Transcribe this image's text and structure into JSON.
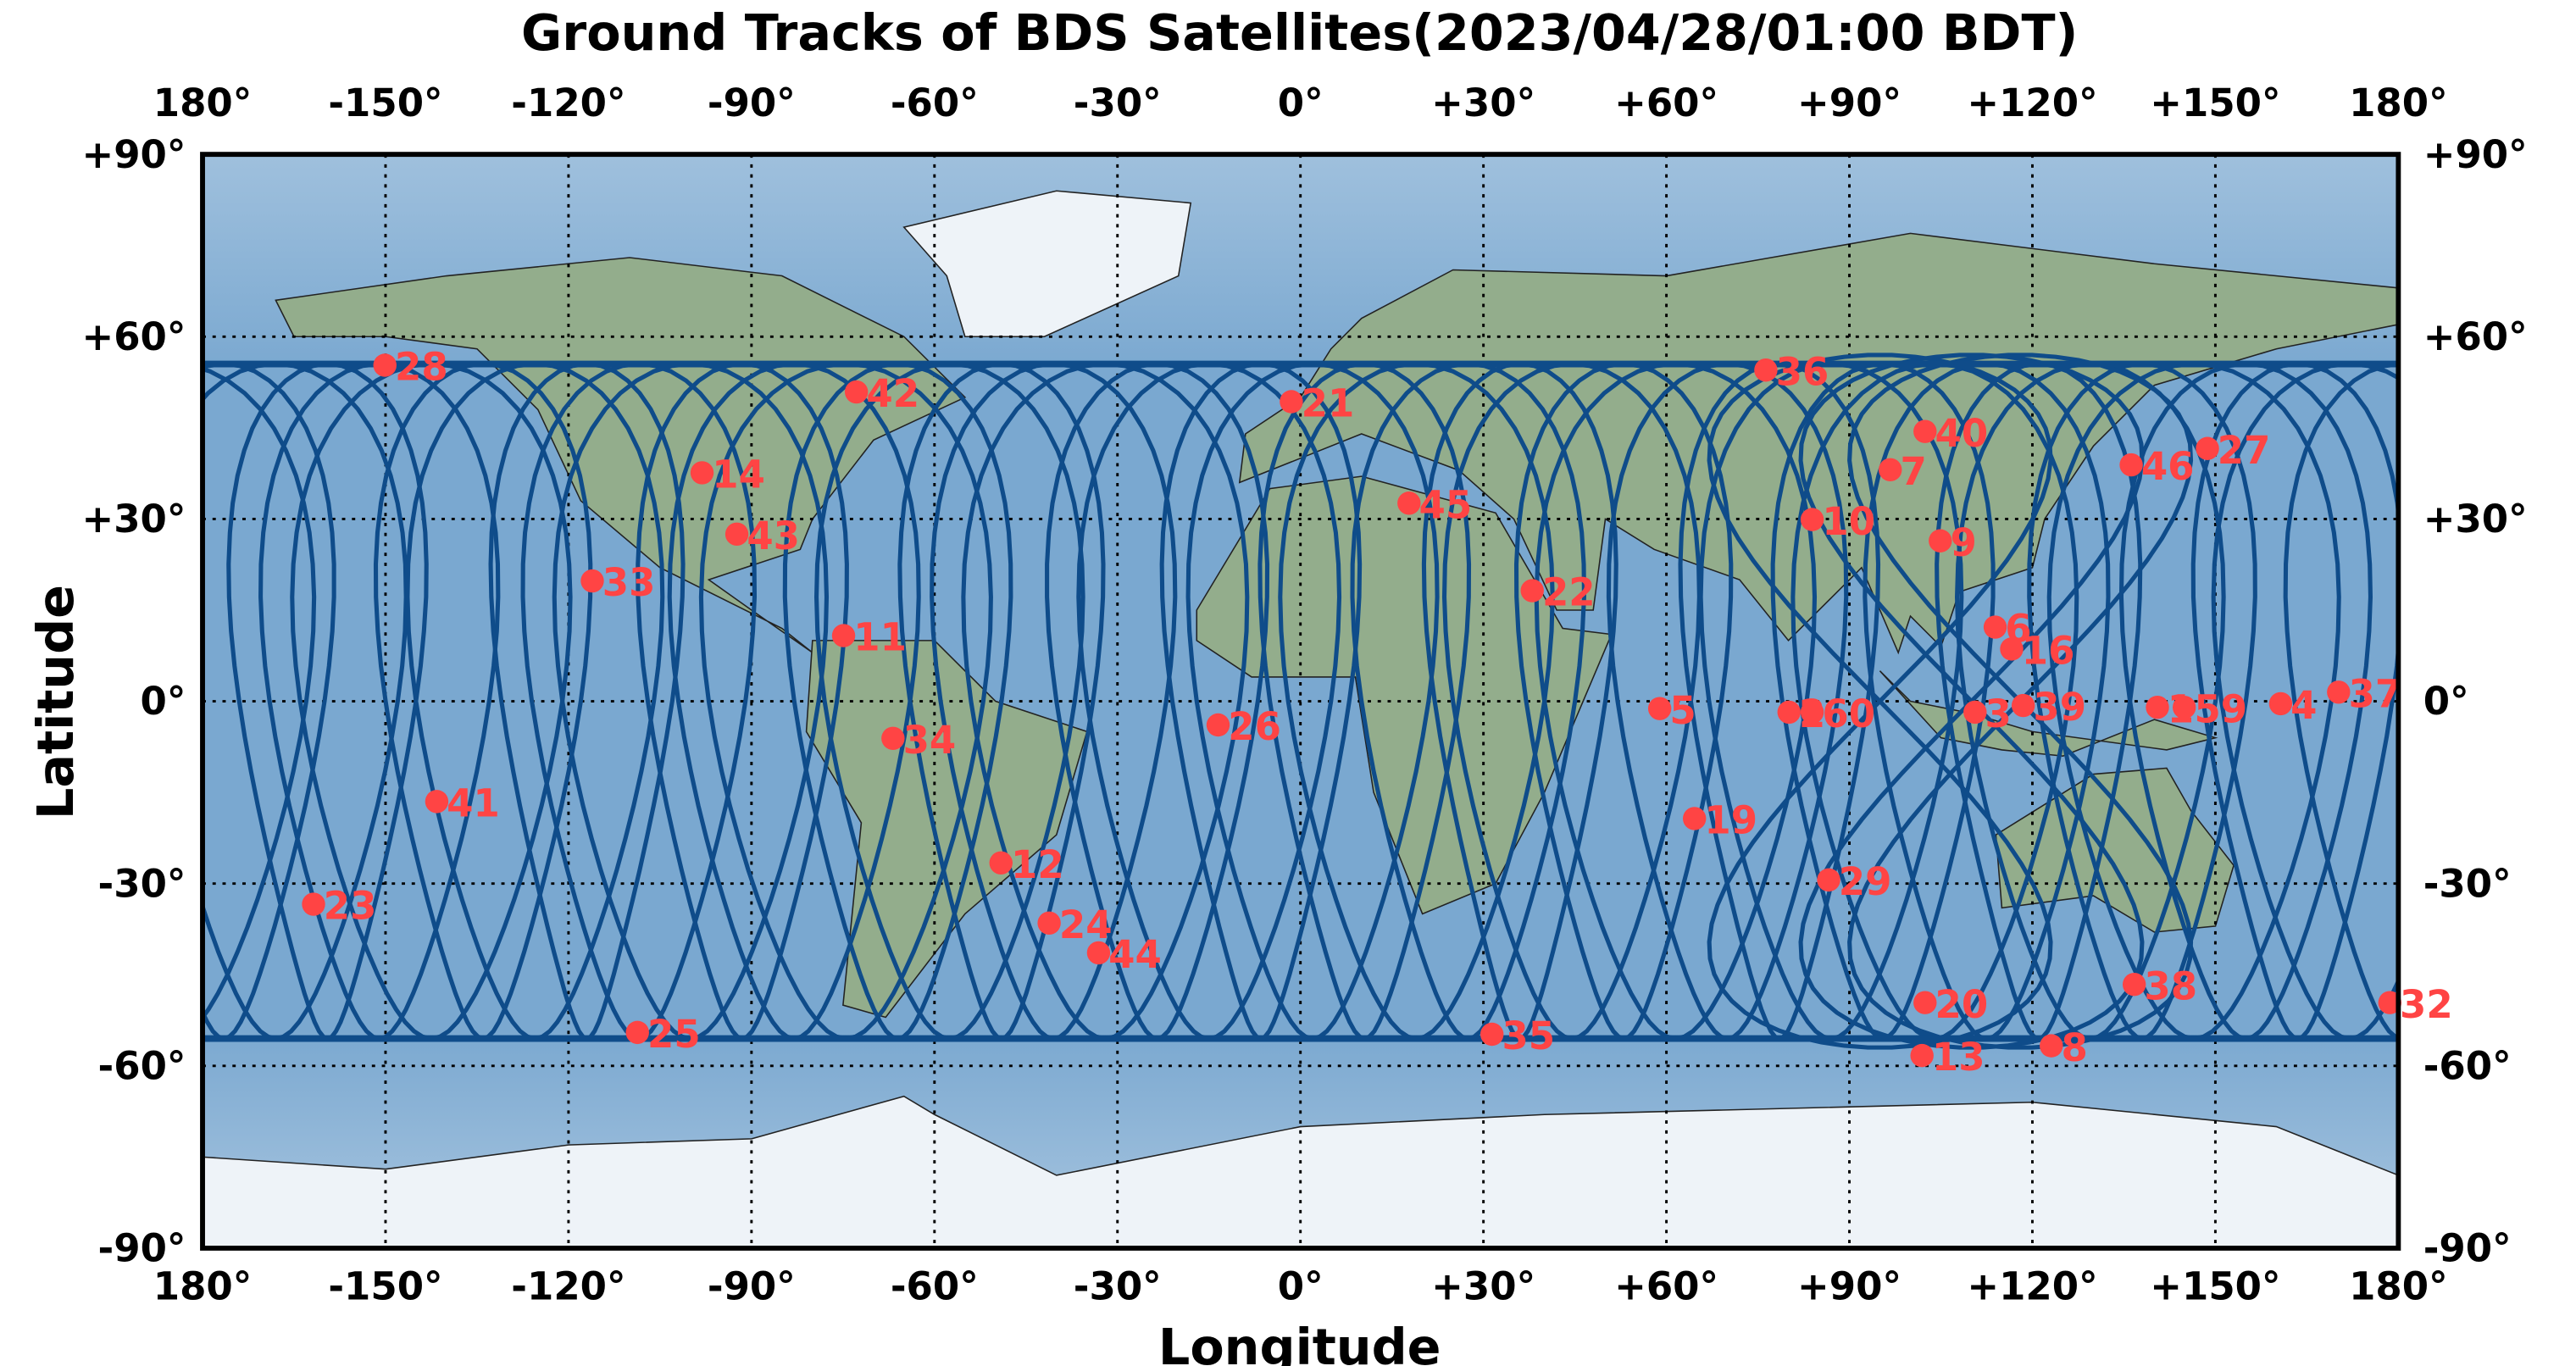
{
  "chart_data": {
    "type": "scatter",
    "title": "Ground Tracks of BDS Satellites(2023/04/28/01:00 BDT)",
    "xlabel": "Longitude",
    "ylabel": "Latitude",
    "xlim": [
      -180,
      180
    ],
    "ylim": [
      -90,
      90
    ],
    "grid": true,
    "x_ticks": [
      "180°",
      "-150°",
      "-120°",
      "-90°",
      "-60°",
      "-30°",
      "0°",
      "+30°",
      "+60°",
      "+90°",
      "+120°",
      "+150°",
      "180°"
    ],
    "y_ticks": [
      "+90°",
      "+60°",
      "+30°",
      "0°",
      "-30°",
      "-60°",
      "-90°"
    ],
    "colors": {
      "track": "#0f4c8a",
      "point": "#ff4444",
      "ocean": "#7aa8d0",
      "land": "#93ad8c",
      "ice": "#eef3f8"
    },
    "satellites": [
      {
        "label": "28",
        "lon": -150.1,
        "lat": 55.3
      },
      {
        "label": "42",
        "lon": -72.8,
        "lat": 50.9
      },
      {
        "label": "21",
        "lon": -1.5,
        "lat": 49.3
      },
      {
        "label": "36",
        "lon": 76.3,
        "lat": 54.5
      },
      {
        "label": "40",
        "lon": 102.4,
        "lat": 44.4
      },
      {
        "label": "7",
        "lon": 96.7,
        "lat": 38.1
      },
      {
        "label": "46",
        "lon": 136.2,
        "lat": 38.9
      },
      {
        "label": "27",
        "lon": 148.7,
        "lat": 41.6
      },
      {
        "label": "14",
        "lon": -98.1,
        "lat": 37.6
      },
      {
        "label": "43",
        "lon": -92.4,
        "lat": 27.5
      },
      {
        "label": "45",
        "lon": 17.8,
        "lat": 32.6
      },
      {
        "label": "10",
        "lon": 83.9,
        "lat": 29.9
      },
      {
        "label": "9",
        "lon": 104.9,
        "lat": 26.4
      },
      {
        "label": "33",
        "lon": -116.1,
        "lat": 19.8
      },
      {
        "label": "22",
        "lon": 38.0,
        "lat": 18.2
      },
      {
        "label": "11",
        "lon": -74.9,
        "lat": 10.8
      },
      {
        "label": "6",
        "lon": 113.9,
        "lat": 12.2
      },
      {
        "label": "16",
        "lon": 116.6,
        "lat": 8.6
      },
      {
        "label": "34",
        "lon": -66.8,
        "lat": -6.1
      },
      {
        "label": "26",
        "lon": -13.5,
        "lat": -3.9
      },
      {
        "label": "5",
        "lon": 58.9,
        "lat": -1.2
      },
      {
        "label": "2",
        "lon": 80.1,
        "lat": -1.8
      },
      {
        "label": "60",
        "lon": 83.9,
        "lat": -1.8
      },
      {
        "label": "3",
        "lon": 110.6,
        "lat": -1.8
      },
      {
        "label": "39",
        "lon": 118.5,
        "lat": -0.7
      },
      {
        "label": "1",
        "lon": 140.5,
        "lat": -1.0
      },
      {
        "label": "59",
        "lon": 144.9,
        "lat": -1.0
      },
      {
        "label": "4",
        "lon": 160.7,
        "lat": -0.4
      },
      {
        "label": "37",
        "lon": 170.2,
        "lat": 1.5
      },
      {
        "label": "41",
        "lon": -141.6,
        "lat": -16.5
      },
      {
        "label": "19",
        "lon": 64.6,
        "lat": -19.3
      },
      {
        "label": "12",
        "lon": -49.1,
        "lat": -26.6
      },
      {
        "label": "29",
        "lon": 86.6,
        "lat": -29.4
      },
      {
        "label": "23",
        "lon": -161.8,
        "lat": -33.4
      },
      {
        "label": "24",
        "lon": -41.2,
        "lat": -36.5
      },
      {
        "label": "44",
        "lon": -33.1,
        "lat": -41.4
      },
      {
        "label": "38",
        "lon": 136.7,
        "lat": -46.6
      },
      {
        "label": "20",
        "lon": 102.4,
        "lat": -49.6
      },
      {
        "label": "32",
        "lon": 178.6,
        "lat": -49.6
      },
      {
        "label": "25",
        "lon": -108.7,
        "lat": -54.5
      },
      {
        "label": "35",
        "lon": 31.4,
        "lat": -54.8
      },
      {
        "label": "13",
        "lon": 101.9,
        "lat": -58.3
      },
      {
        "label": "8",
        "lon": 123.1,
        "lat": -56.7
      }
    ]
  }
}
